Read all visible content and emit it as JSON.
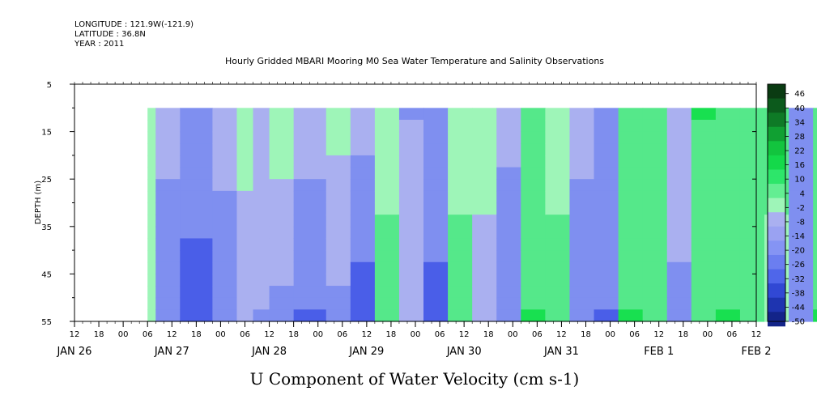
{
  "header": {
    "longitude": "LONGITUDE : 121.9W(-121.9)",
    "latitude": "LATITUDE : 36.8N",
    "year": "YEAR : 2011"
  },
  "chart_data": {
    "type": "heatmap",
    "title": "Hourly Gridded MBARI Mooring M0 Sea Water Temperature and Salinity Observations",
    "variable_label": "U Component of Water Velocity (cm s-1)",
    "ylabel": "DEPTH (m)",
    "y_ticks": [
      "5",
      "15",
      "25",
      "35",
      "45",
      "55"
    ],
    "y_range": [
      5,
      55
    ],
    "y_inverted": true,
    "data_depth_range": [
      10,
      55
    ],
    "x_range_hours": "2011-01-26 12:00 to 2011-02-02 12:00",
    "x_hour_ticks": [
      "12",
      "18",
      "00",
      "06",
      "12",
      "18",
      "00",
      "06",
      "12",
      "18",
      "00",
      "06",
      "12",
      "18",
      "00",
      "06",
      "12",
      "18",
      "00",
      "06",
      "12",
      "18",
      "00",
      "06",
      "12",
      "18",
      "00",
      "06",
      "12"
    ],
    "x_date_labels": [
      "JAN 26",
      "JAN 27",
      "JAN 28",
      "JAN 29",
      "JAN 30",
      "JAN 31",
      "FEB  1",
      "FEB  2"
    ],
    "data_start": "JAN 26 18",
    "colorbar": {
      "labels": [
        "46",
        "40",
        "34",
        "28",
        "22",
        "16",
        "10",
        "4",
        "-2",
        "-8",
        "-14",
        "-20",
        "-26",
        "-32",
        "-38",
        "-44",
        "-50"
      ],
      "range": [
        -50,
        50
      ],
      "step": 3
    },
    "colors": {
      "negative_light": "#aab0f0",
      "negative_mid": "#7f8ff0",
      "negative_strong": "#4a5ee8",
      "positive_light": "#9ef5b8",
      "positive_mid": "#55e88a",
      "positive_strong": "#18e050"
    },
    "bands": [
      {
        "t_start": 18,
        "t_end": 20,
        "u_top": 6,
        "u_bottom": 2
      },
      {
        "t_start": 20,
        "t_end": 26,
        "u_top": -6,
        "u_bottom": -12
      },
      {
        "t_start": 26,
        "t_end": 34,
        "u_top": -10,
        "u_bottom": -26
      },
      {
        "t_start": 34,
        "t_end": 40,
        "u_top": -4,
        "u_bottom": -14
      },
      {
        "t_start": 40,
        "t_end": 44,
        "u_top": 4,
        "u_bottom": -4
      },
      {
        "t_start": 44,
        "t_end": 48,
        "u_top": -2,
        "u_bottom": -8
      },
      {
        "t_start": 48,
        "t_end": 54,
        "u_top": 6,
        "u_bottom": -10
      },
      {
        "t_start": 54,
        "t_end": 62,
        "u_top": -2,
        "u_bottom": -20
      },
      {
        "t_start": 62,
        "t_end": 68,
        "u_top": 4,
        "u_bottom": -10
      },
      {
        "t_start": 68,
        "t_end": 74,
        "u_top": -4,
        "u_bottom": -26
      },
      {
        "t_start": 74,
        "t_end": 80,
        "u_top": 4,
        "u_bottom": 12
      },
      {
        "t_start": 80,
        "t_end": 86,
        "u_top": -8,
        "u_bottom": -6
      },
      {
        "t_start": 86,
        "t_end": 92,
        "u_top": -10,
        "u_bottom": -24
      },
      {
        "t_start": 92,
        "t_end": 98,
        "u_top": 4,
        "u_bottom": 12
      },
      {
        "t_start": 98,
        "t_end": 104,
        "u_top": 6,
        "u_bottom": -4
      },
      {
        "t_start": 104,
        "t_end": 110,
        "u_top": -6,
        "u_bottom": -14
      },
      {
        "t_start": 110,
        "t_end": 116,
        "u_top": 12,
        "u_bottom": 14
      },
      {
        "t_start": 116,
        "t_end": 122,
        "u_top": 6,
        "u_bottom": 10
      },
      {
        "t_start": 122,
        "t_end": 128,
        "u_top": -6,
        "u_bottom": -12
      },
      {
        "t_start": 128,
        "t_end": 134,
        "u_top": -10,
        "u_bottom": -20
      },
      {
        "t_start": 134,
        "t_end": 140,
        "u_top": 10,
        "u_bottom": 14
      },
      {
        "t_start": 140,
        "t_end": 146,
        "u_top": 12,
        "u_bottom": 10
      },
      {
        "t_start": 146,
        "t_end": 152,
        "u_top": -2,
        "u_bottom": -10
      },
      {
        "t_start": 152,
        "t_end": 158,
        "u_top": 14,
        "u_bottom": 10
      },
      {
        "t_start": 158,
        "t_end": 164,
        "u_top": 10,
        "u_bottom": 14
      },
      {
        "t_start": 164,
        "t_end": 170,
        "u_top": 8,
        "u_bottom": 10
      },
      {
        "t_start": 170,
        "t_end": 176,
        "u_top": 10,
        "u_bottom": 6
      },
      {
        "t_start": 176,
        "t_end": 182,
        "u_top": -14,
        "u_bottom": -10
      },
      {
        "t_start": 182,
        "t_end": 188,
        "u_top": 12,
        "u_bottom": 14
      },
      {
        "t_start": 188,
        "t_end": 194,
        "u_top": 10,
        "u_bottom": 4
      },
      {
        "t_start": 194,
        "t_end": 200,
        "u_top": 8,
        "u_bottom": 2
      },
      {
        "t_start": 200,
        "t_end": 206,
        "u_top": 4,
        "u_bottom": 10
      },
      {
        "t_start": 206,
        "t_end": 212,
        "u_top": -10,
        "u_bottom": -14
      },
      {
        "t_start": 212,
        "t_end": 218,
        "u_top": 16,
        "u_bottom": 8
      },
      {
        "t_start": 218,
        "t_end": 222,
        "u_top": 10,
        "u_bottom": -6
      }
    ]
  }
}
